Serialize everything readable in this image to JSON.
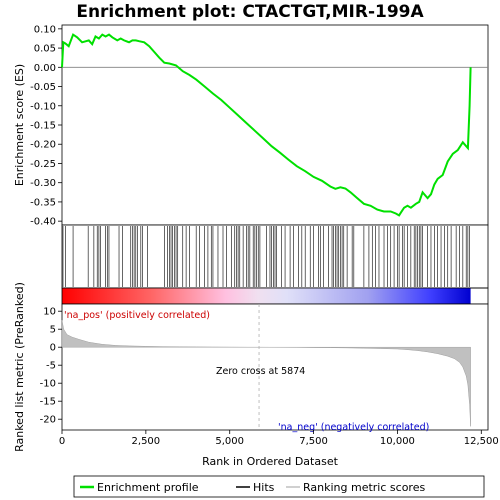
{
  "chart_data": {
    "type": "line",
    "title": "Enrichment plot: CTACTGT,MIR-199A",
    "colors": {
      "enrichment": "#00e000",
      "hits": "#000000",
      "metric": "#c0c0c0",
      "positive": "#ff0000",
      "negative": "#0000ff",
      "zero_line": "#b0b0b0"
    },
    "top_panel": {
      "ylabel": "Enrichment score (ES)",
      "ylim": [
        -0.41,
        0.11
      ],
      "yticks": [
        0.1,
        0.05,
        0.0,
        -0.05,
        -0.1,
        -0.15,
        -0.2,
        -0.25,
        -0.3,
        -0.35,
        -0.4
      ],
      "ytick_labels": [
        "0.10",
        "0.05",
        "0.00",
        "-0.05",
        "-0.10",
        "-0.15",
        "-0.20",
        "-0.25",
        "-0.30",
        "-0.35",
        "-0.40"
      ],
      "series": [
        {
          "name": "Enrichment profile",
          "x": [
            0,
            40,
            100,
            200,
            330,
            450,
            600,
            800,
            900,
            1000,
            1100,
            1200,
            1300,
            1400,
            1500,
            1650,
            1750,
            1850,
            2000,
            2100,
            2200,
            2300,
            2450,
            2600,
            2750,
            2900,
            3050,
            3200,
            3400,
            3600,
            3800,
            4000,
            4250,
            4500,
            4750,
            5000,
            5250,
            5500,
            5750,
            6000,
            6250,
            6500,
            6750,
            7000,
            7250,
            7500,
            7750,
            8000,
            8150,
            8300,
            8450,
            8600,
            8800,
            9000,
            9200,
            9400,
            9600,
            9800,
            9950,
            10050,
            10100,
            10200,
            10300,
            10400,
            10550,
            10650,
            10750,
            10900,
            11000,
            11100,
            11200,
            11350,
            11500,
            11650,
            11800,
            11950,
            12050,
            12100,
            12150,
            12180
          ],
          "y": [
            0.0,
            0.065,
            0.062,
            0.055,
            0.085,
            0.078,
            0.065,
            0.07,
            0.06,
            0.08,
            0.075,
            0.085,
            0.08,
            0.085,
            0.078,
            0.07,
            0.075,
            0.07,
            0.065,
            0.07,
            0.07,
            0.068,
            0.065,
            0.055,
            0.04,
            0.025,
            0.012,
            0.01,
            0.005,
            -0.01,
            -0.02,
            -0.032,
            -0.05,
            -0.068,
            -0.085,
            -0.105,
            -0.125,
            -0.145,
            -0.165,
            -0.185,
            -0.205,
            -0.222,
            -0.24,
            -0.257,
            -0.27,
            -0.285,
            -0.295,
            -0.31,
            -0.316,
            -0.312,
            -0.315,
            -0.325,
            -0.34,
            -0.355,
            -0.36,
            -0.37,
            -0.375,
            -0.375,
            -0.38,
            -0.385,
            -0.378,
            -0.365,
            -0.36,
            -0.365,
            -0.355,
            -0.35,
            -0.325,
            -0.34,
            -0.33,
            -0.305,
            -0.29,
            -0.28,
            -0.245,
            -0.225,
            -0.215,
            -0.195,
            -0.205,
            -0.21,
            -0.1,
            0.0
          ]
        }
      ]
    },
    "hit_positions": [
      30,
      110,
      330,
      780,
      950,
      1050,
      1100,
      1150,
      1300,
      1350,
      1400,
      1700,
      1800,
      2050,
      2100,
      2150,
      2200,
      2250,
      2350,
      2400,
      2550,
      3050,
      3150,
      3200,
      3250,
      3300,
      3350,
      3400,
      3450,
      3600,
      3700,
      3800,
      4000,
      4100,
      4250,
      4350,
      4450,
      4500,
      4650,
      4800,
      4900,
      5050,
      5150,
      5200,
      5250,
      5300,
      5400,
      5500,
      5550,
      5600,
      5700,
      5750,
      5800,
      5850,
      5900,
      6100,
      6200,
      6250,
      6300,
      6350,
      6400,
      6550,
      6650,
      6800,
      6900,
      7050,
      7150,
      7250,
      7400,
      7500,
      7650,
      7700,
      7800,
      7950,
      8050,
      8100,
      8150,
      8200,
      8250,
      8300,
      8350,
      8400,
      8500,
      8650,
      8700,
      9000,
      9150,
      9250,
      9350,
      9450,
      9600,
      9700,
      9800,
      9900,
      10000,
      10050,
      10150,
      10200,
      10300,
      10400,
      10500,
      10550,
      10600,
      10650,
      10700,
      10750,
      10900,
      11000,
      11100,
      11200,
      11300,
      11400,
      11500,
      11600,
      11750,
      11850,
      11950,
      12050,
      12100,
      12150
    ],
    "bottom_panel": {
      "ylabel": "Ranked list metric (PreRanked)",
      "ylim": [
        -23,
        12
      ],
      "yticks": [
        10,
        5,
        0,
        -5,
        -10,
        -15,
        -20
      ],
      "ytick_labels": [
        "10",
        "5",
        "0",
        "-5",
        "-10",
        "-15",
        "-20"
      ],
      "metric_x": [
        0,
        50,
        150,
        300,
        500,
        800,
        1200,
        1600,
        2000,
        2500,
        3000,
        3500,
        4000,
        4500,
        5000,
        5500,
        5874,
        6500,
        7000,
        7500,
        8000,
        8500,
        9000,
        9500,
        10000,
        10300,
        10600,
        10900,
        11200,
        11500,
        11700,
        11850,
        11950,
        12050,
        12100,
        12150,
        12180
      ],
      "metric_y": [
        7.5,
        5.0,
        3.5,
        2.8,
        2.2,
        1.4,
        0.8,
        0.5,
        0.35,
        0.25,
        0.18,
        0.12,
        0.08,
        0.05,
        0.03,
        0.01,
        0.0,
        -0.03,
        -0.06,
        -0.1,
        -0.15,
        -0.2,
        -0.28,
        -0.38,
        -0.5,
        -0.7,
        -0.95,
        -1.3,
        -1.8,
        -2.5,
        -3.2,
        -4.2,
        -5.5,
        -8.0,
        -10.5,
        -16.0,
        -22.0
      ],
      "zero_cross_label": "Zero cross at 5874",
      "zero_cross": 5874,
      "pos_label": "'na_pos' (positively correlated)",
      "neg_label": "'na_neg' (negatively correlated)"
    },
    "xlabel": "Rank in Ordered Dataset",
    "xlim": [
      0,
      12700
    ],
    "xticks": [
      0,
      2500,
      5000,
      7500,
      10000,
      12500
    ],
    "xtick_labels": [
      "0",
      "2,500",
      "5,000",
      "7,500",
      "10,000",
      "12,500"
    ],
    "dataset_size": 12180,
    "legend": [
      "Enrichment profile",
      "Hits",
      "Ranking metric scores"
    ],
    "legend_position": "bottom"
  }
}
